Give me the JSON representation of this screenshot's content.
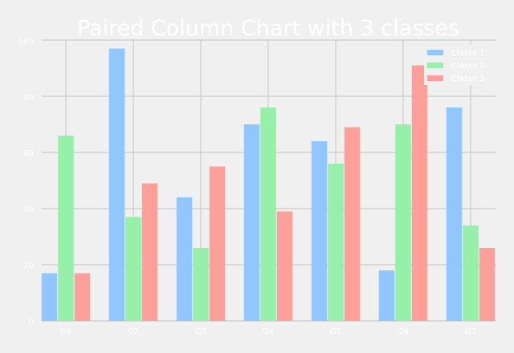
{
  "chart_data": {
    "type": "bar",
    "title": "Paired Column Chart with 3 classes",
    "xlabel": "",
    "ylabel": "",
    "categories": [
      "G1",
      "G2",
      "G3",
      "G4",
      "G5",
      "G6",
      "G7"
    ],
    "series": [
      {
        "name": "Classe 1",
        "color": "#92c6ff",
        "values": [
          17,
          97,
          44,
          70,
          64,
          18,
          76
        ]
      },
      {
        "name": "Classe 2",
        "color": "#97f0aa",
        "values": [
          66,
          37,
          26,
          76,
          56,
          70,
          34
        ]
      },
      {
        "name": "Classe 3",
        "color": "#ff9f9a",
        "values": [
          17,
          49,
          55,
          39,
          69,
          91,
          26
        ]
      }
    ],
    "ylim": [
      0,
      100
    ],
    "yticks": [
      "0",
      "20",
      "40",
      "60",
      "80",
      "100"
    ],
    "grid": true,
    "legend_position": "top-right",
    "colors": {
      "background": "#f0f0f0",
      "grid": "#cbcbcb",
      "text": "#ffffff"
    }
  }
}
